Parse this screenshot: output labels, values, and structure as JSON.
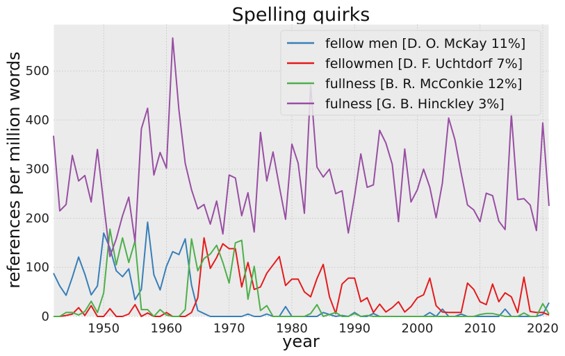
{
  "chart_data": {
    "type": "line",
    "title": "Spelling quirks",
    "xlabel": "year",
    "ylabel": "references per million words",
    "xlim": [
      1942,
      2021
    ],
    "ylim": [
      0,
      595
    ],
    "xticks": [
      1950,
      1960,
      1970,
      1980,
      1990,
      2000,
      2010,
      2020
    ],
    "yticks": [
      0,
      100,
      200,
      300,
      400,
      500
    ],
    "grid": true,
    "legend_position": "top-right",
    "x": [
      1942,
      1943,
      1944,
      1945,
      1946,
      1947,
      1948,
      1949,
      1950,
      1951,
      1952,
      1953,
      1954,
      1955,
      1956,
      1957,
      1958,
      1959,
      1960,
      1961,
      1962,
      1963,
      1964,
      1965,
      1966,
      1967,
      1968,
      1969,
      1970,
      1971,
      1972,
      1973,
      1974,
      1975,
      1976,
      1977,
      1978,
      1979,
      1980,
      1981,
      1982,
      1983,
      1984,
      1985,
      1986,
      1987,
      1988,
      1989,
      1990,
      1991,
      1992,
      1993,
      1994,
      1995,
      1996,
      1997,
      1998,
      1999,
      2000,
      2001,
      2002,
      2003,
      2004,
      2005,
      2006,
      2007,
      2008,
      2009,
      2010,
      2011,
      2012,
      2013,
      2014,
      2015,
      2016,
      2017,
      2018,
      2019,
      2020,
      2021
    ],
    "series": [
      {
        "name": "fellow men [D. O. McKay 11%]",
        "color": "#377eb8",
        "values": [
          88,
          62,
          43,
          80,
          121,
          86,
          44,
          62,
          170,
          139,
          93,
          81,
          97,
          34,
          55,
          192,
          85,
          54,
          102,
          132,
          126,
          158,
          64,
          12,
          6,
          0,
          0,
          0,
          0,
          0,
          0,
          5,
          0,
          0,
          5,
          0,
          0,
          20,
          0,
          0,
          0,
          0,
          0,
          8,
          4,
          0,
          2,
          0,
          8,
          0,
          0,
          6,
          0,
          0,
          0,
          0,
          0,
          0,
          0,
          0,
          8,
          0,
          15,
          0,
          0,
          5,
          0,
          0,
          0,
          0,
          0,
          0,
          15,
          0,
          0,
          0,
          0,
          0,
          4,
          28
        ]
      },
      {
        "name": "fellowmen [D. F. Uchtdorf 7%]",
        "color": "#e41a1c",
        "values": [
          0,
          0,
          2,
          5,
          18,
          2,
          22,
          0,
          0,
          16,
          0,
          0,
          5,
          24,
          0,
          7,
          0,
          0,
          8,
          0,
          0,
          0,
          8,
          38,
          160,
          98,
          120,
          148,
          138,
          138,
          60,
          110,
          55,
          60,
          88,
          105,
          122,
          63,
          76,
          76,
          50,
          40,
          77,
          106,
          40,
          6,
          66,
          78,
          78,
          30,
          38,
          8,
          25,
          9,
          18,
          30,
          9,
          20,
          38,
          44,
          78,
          22,
          9,
          8,
          8,
          8,
          68,
          55,
          30,
          24,
          66,
          30,
          48,
          40,
          8,
          80,
          10,
          8,
          8,
          3
        ]
      },
      {
        "name": "fullness [B. R. McConkie 12%]",
        "color": "#4daf4a",
        "values": [
          0,
          0,
          8,
          8,
          3,
          10,
          31,
          8,
          48,
          178,
          105,
          160,
          110,
          154,
          14,
          14,
          0,
          14,
          3,
          0,
          0,
          14,
          158,
          93,
          118,
          127,
          145,
          110,
          68,
          150,
          155,
          35,
          102,
          12,
          22,
          0,
          0,
          0,
          0,
          0,
          0,
          6,
          24,
          0,
          4,
          8,
          0,
          0,
          6,
          0,
          2,
          0,
          0,
          0,
          0,
          0,
          0,
          0,
          0,
          0,
          0,
          0,
          0,
          0,
          0,
          0,
          0,
          0,
          4,
          6,
          6,
          3,
          0,
          0,
          0,
          7,
          0,
          0,
          26,
          5
        ]
      },
      {
        "name": "fulness [G. B. Hinckley 3%]",
        "color": "#984ea3",
        "values": [
          368,
          215,
          228,
          328,
          276,
          287,
          233,
          340,
          230,
          122,
          158,
          205,
          243,
          152,
          382,
          424,
          288,
          334,
          302,
          567,
          420,
          312,
          258,
          219,
          228,
          188,
          235,
          168,
          288,
          282,
          205,
          252,
          172,
          375,
          276,
          335,
          265,
          198,
          351,
          312,
          210,
          470,
          304,
          284,
          300,
          250,
          256,
          170,
          245,
          331,
          263,
          268,
          379,
          353,
          310,
          193,
          341,
          233,
          258,
          300,
          263,
          201,
          272,
          404,
          360,
          292,
          227,
          217,
          193,
          251,
          246,
          194,
          177,
          412,
          238,
          240,
          227,
          175,
          394,
          225
        ]
      }
    ]
  }
}
